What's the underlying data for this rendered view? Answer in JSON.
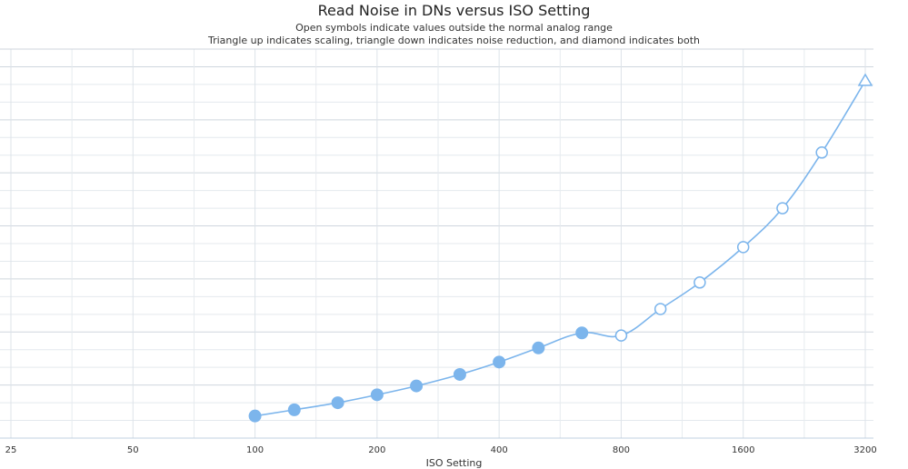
{
  "chart_data": {
    "type": "line",
    "title": "Read Noise in DNs versus ISO Setting",
    "subtitle_lines": [
      "Open symbols indicate values outside the normal analog range",
      "Triangle up indicates scaling, triangle down indicates noise reduction, and diamond indicates both"
    ],
    "xlabel": "ISO Setting",
    "ylabel": "",
    "x_scale": "log2",
    "xlim": [
      25,
      3200
    ],
    "x_ticks": [
      25,
      50,
      100,
      200,
      400,
      800,
      1600,
      3200
    ],
    "x_tick_labels": [
      "25",
      "50",
      "100",
      "200",
      "400",
      "800",
      "1600",
      "3200"
    ],
    "grid": true,
    "series": [
      {
        "color": "#7cb5ec",
        "points": [
          {
            "x": 100,
            "y": 0.25,
            "marker": "circle-filled"
          },
          {
            "x": 125,
            "y": 0.32,
            "marker": "circle-filled"
          },
          {
            "x": 160,
            "y": 0.4,
            "marker": "circle-filled"
          },
          {
            "x": 200,
            "y": 0.49,
            "marker": "circle-filled"
          },
          {
            "x": 250,
            "y": 0.59,
            "marker": "circle-filled"
          },
          {
            "x": 320,
            "y": 0.72,
            "marker": "circle-filled"
          },
          {
            "x": 400,
            "y": 0.86,
            "marker": "circle-filled"
          },
          {
            "x": 500,
            "y": 1.02,
            "marker": "circle-filled"
          },
          {
            "x": 640,
            "y": 1.19,
            "marker": "circle-filled"
          },
          {
            "x": 800,
            "y": 1.16,
            "marker": "circle-open"
          },
          {
            "x": 1000,
            "y": 1.46,
            "marker": "circle-open"
          },
          {
            "x": 1250,
            "y": 1.76,
            "marker": "circle-open"
          },
          {
            "x": 1600,
            "y": 2.16,
            "marker": "circle-open"
          },
          {
            "x": 2000,
            "y": 2.6,
            "marker": "circle-open"
          },
          {
            "x": 2500,
            "y": 3.23,
            "marker": "circle-open"
          },
          {
            "x": 3200,
            "y": 4.04,
            "marker": "triangle-up-open"
          }
        ]
      }
    ]
  }
}
